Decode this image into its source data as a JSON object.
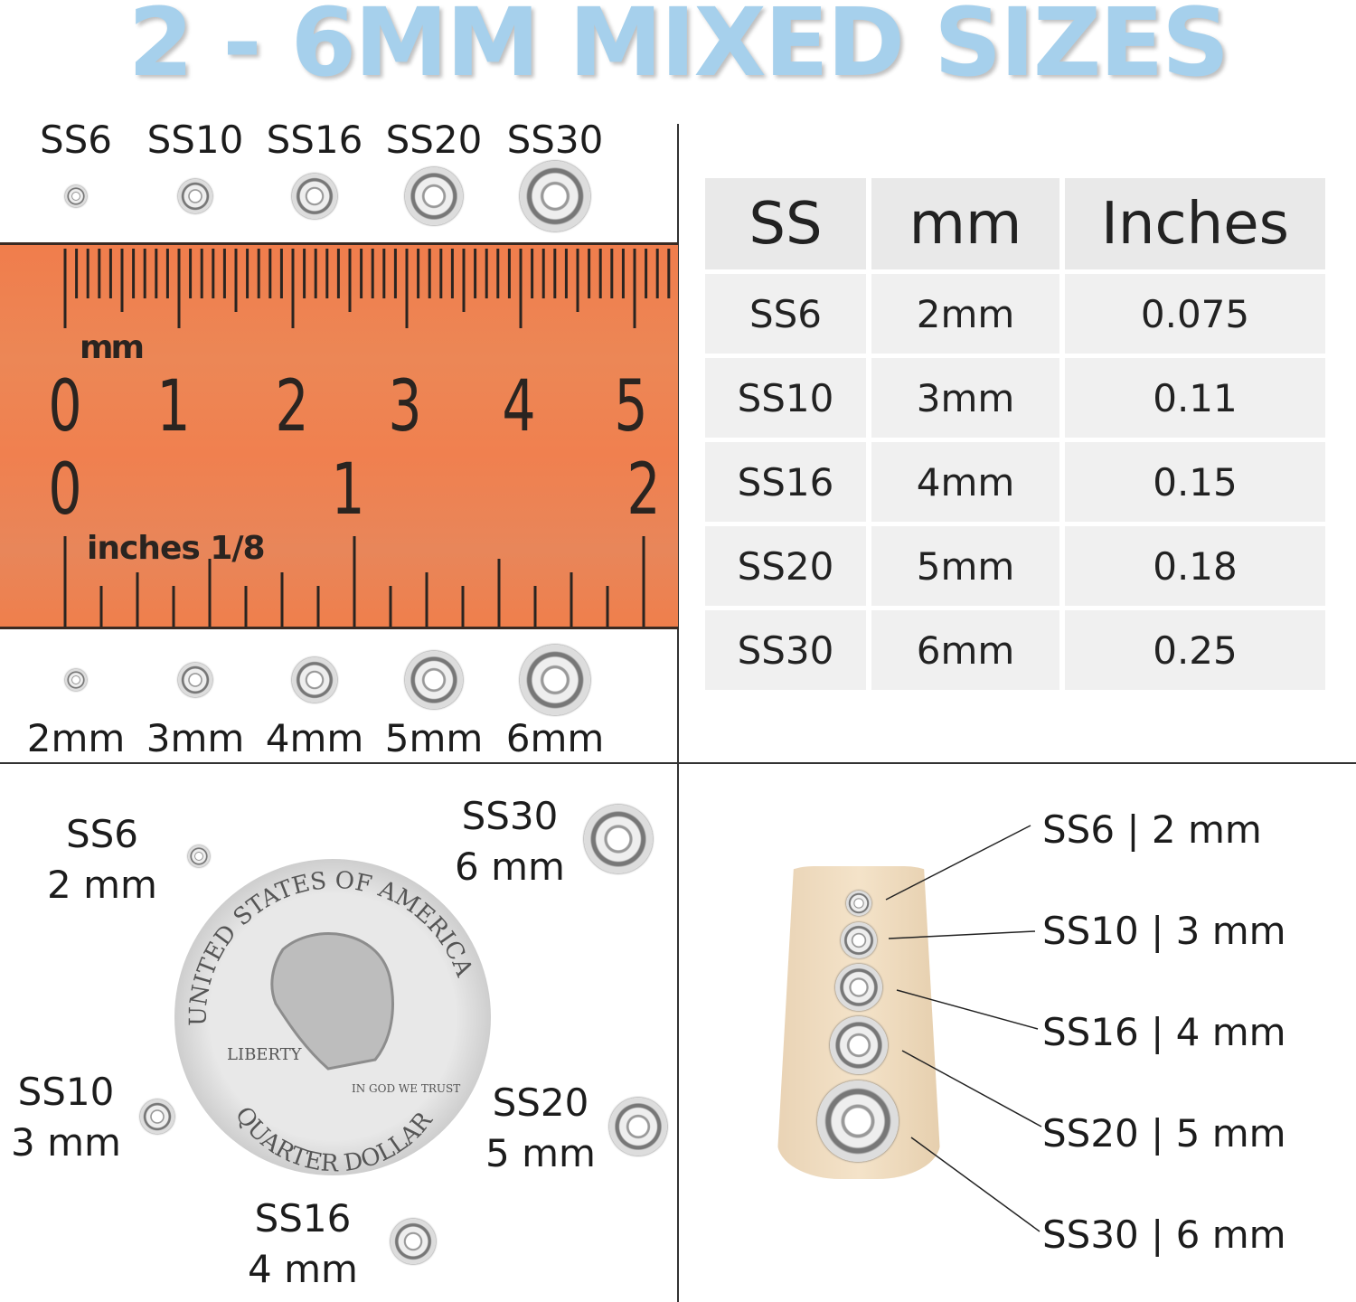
{
  "title": "2 - 6MM MIXED SIZES",
  "colors": {
    "title": "#a6d0ec",
    "ruler": "#ef7f4c",
    "table_bg": "#f0f0f0"
  },
  "ruler": {
    "top_unit": "mm",
    "top_numbers": [
      "0",
      "1",
      "2",
      "3",
      "4",
      "5"
    ],
    "bottom_numbers": [
      "0",
      "1",
      "2"
    ],
    "bottom_unit": "inches 1/8"
  },
  "top_labels": [
    "SS6",
    "SS10",
    "SS16",
    "SS20",
    "SS30"
  ],
  "bottom_labels": [
    "2mm",
    "3mm",
    "4mm",
    "5mm",
    "6mm"
  ],
  "table": {
    "headers": [
      "SS",
      "mm",
      "Inches"
    ],
    "rows": [
      [
        "SS6",
        "2mm",
        "0.075"
      ],
      [
        "SS10",
        "3mm",
        "0.11"
      ],
      [
        "SS16",
        "4mm",
        "0.15"
      ],
      [
        "SS20",
        "5mm",
        "0.18"
      ],
      [
        "SS30",
        "6mm",
        "0.25"
      ]
    ]
  },
  "quarter": {
    "coin_text": [
      "UNITED STATES OF AMERICA",
      "LIBERTY",
      "IN GOD WE TRUST",
      "QUARTER DOLLAR"
    ],
    "labels": [
      {
        "ss": "SS6",
        "mm": "2 mm"
      },
      {
        "ss": "SS30",
        "mm": "6 mm"
      },
      {
        "ss": "SS10",
        "mm": "3 mm"
      },
      {
        "ss": "SS20",
        "mm": "5 mm"
      },
      {
        "ss": "SS16",
        "mm": "4 mm"
      }
    ]
  },
  "nail": {
    "labels": [
      "SS6 | 2 mm",
      "SS10 | 3 mm",
      "SS16 | 4 mm",
      "SS20 | 5 mm",
      "SS30 | 6 mm"
    ]
  }
}
